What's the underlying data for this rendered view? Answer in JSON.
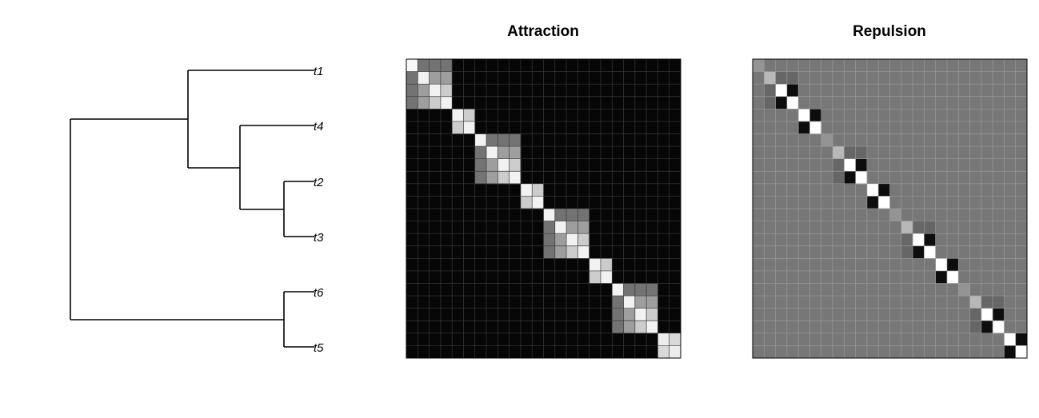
{
  "chart_data": [
    {
      "type": "tree",
      "newick": "((t1,(t4,(t2,t3))),(t6,t5));",
      "tip_labels": [
        "t1",
        "t4",
        "t2",
        "t3",
        "t6",
        "t5"
      ]
    },
    {
      "type": "heatmap",
      "title": "Attraction",
      "size": 24,
      "colors": {
        "background": "#060606",
        "grid": "#3a3a3a",
        "frame": "#000000"
      },
      "cells": [
        [
          0,
          0,
          0.97
        ],
        [
          0,
          1,
          0.45
        ],
        [
          0,
          2,
          0.45
        ],
        [
          0,
          3,
          0.45
        ],
        [
          1,
          0,
          0.45
        ],
        [
          1,
          1,
          0.95
        ],
        [
          1,
          2,
          0.62
        ],
        [
          1,
          3,
          0.62
        ],
        [
          2,
          0,
          0.45
        ],
        [
          2,
          1,
          0.62
        ],
        [
          2,
          2,
          0.95
        ],
        [
          2,
          3,
          0.8
        ],
        [
          3,
          0,
          0.45
        ],
        [
          3,
          1,
          0.62
        ],
        [
          3,
          2,
          0.8
        ],
        [
          3,
          3,
          0.95
        ],
        [
          4,
          4,
          0.95
        ],
        [
          4,
          5,
          0.8
        ],
        [
          5,
          4,
          0.8
        ],
        [
          5,
          5,
          0.95
        ],
        [
          6,
          6,
          0.95
        ],
        [
          6,
          7,
          0.45
        ],
        [
          6,
          8,
          0.45
        ],
        [
          6,
          9,
          0.45
        ],
        [
          7,
          6,
          0.45
        ],
        [
          7,
          7,
          0.95
        ],
        [
          7,
          8,
          0.62
        ],
        [
          7,
          9,
          0.62
        ],
        [
          8,
          6,
          0.45
        ],
        [
          8,
          7,
          0.62
        ],
        [
          8,
          8,
          0.95
        ],
        [
          8,
          9,
          0.8
        ],
        [
          9,
          6,
          0.45
        ],
        [
          9,
          7,
          0.62
        ],
        [
          9,
          8,
          0.8
        ],
        [
          9,
          9,
          0.95
        ],
        [
          10,
          10,
          0.95
        ],
        [
          10,
          11,
          0.8
        ],
        [
          11,
          10,
          0.8
        ],
        [
          11,
          11,
          0.95
        ],
        [
          12,
          12,
          0.95
        ],
        [
          12,
          13,
          0.45
        ],
        [
          12,
          14,
          0.45
        ],
        [
          12,
          15,
          0.45
        ],
        [
          13,
          12,
          0.45
        ],
        [
          13,
          13,
          0.95
        ],
        [
          13,
          14,
          0.62
        ],
        [
          13,
          15,
          0.62
        ],
        [
          14,
          12,
          0.45
        ],
        [
          14,
          13,
          0.62
        ],
        [
          14,
          14,
          0.95
        ],
        [
          14,
          15,
          0.8
        ],
        [
          15,
          12,
          0.45
        ],
        [
          15,
          13,
          0.62
        ],
        [
          15,
          14,
          0.8
        ],
        [
          15,
          15,
          0.95
        ],
        [
          16,
          16,
          0.95
        ],
        [
          16,
          17,
          0.8
        ],
        [
          17,
          16,
          0.8
        ],
        [
          17,
          17,
          0.95
        ],
        [
          18,
          18,
          0.95
        ],
        [
          18,
          19,
          0.45
        ],
        [
          18,
          20,
          0.45
        ],
        [
          18,
          21,
          0.45
        ],
        [
          19,
          18,
          0.45
        ],
        [
          19,
          19,
          0.95
        ],
        [
          19,
          20,
          0.62
        ],
        [
          19,
          21,
          0.62
        ],
        [
          20,
          18,
          0.45
        ],
        [
          20,
          19,
          0.62
        ],
        [
          20,
          20,
          0.95
        ],
        [
          20,
          21,
          0.8
        ],
        [
          21,
          18,
          0.45
        ],
        [
          21,
          19,
          0.62
        ],
        [
          21,
          20,
          0.8
        ],
        [
          21,
          21,
          0.95
        ],
        [
          22,
          22,
          0.93
        ],
        [
          22,
          23,
          0.85
        ],
        [
          23,
          22,
          0.85
        ],
        [
          23,
          23,
          0.93
        ]
      ]
    },
    {
      "type": "heatmap",
      "title": "Repulsion",
      "size": 24,
      "colors": {
        "background": "#777777",
        "grid": "#9a9a9a",
        "frame": "#000000"
      },
      "cells": [
        [
          0,
          0,
          0.58
        ],
        [
          1,
          1,
          0.72
        ],
        [
          1,
          2,
          0.4
        ],
        [
          1,
          3,
          0.4
        ],
        [
          2,
          1,
          0.4
        ],
        [
          2,
          2,
          1.0
        ],
        [
          2,
          3,
          0.05
        ],
        [
          3,
          1,
          0.4
        ],
        [
          3,
          2,
          0.05
        ],
        [
          3,
          3,
          1.0
        ],
        [
          4,
          4,
          1.0
        ],
        [
          4,
          5,
          0.05
        ],
        [
          5,
          4,
          0.05
        ],
        [
          5,
          5,
          1.0
        ],
        [
          6,
          6,
          0.58
        ],
        [
          7,
          7,
          0.72
        ],
        [
          7,
          8,
          0.4
        ],
        [
          7,
          9,
          0.4
        ],
        [
          8,
          7,
          0.4
        ],
        [
          8,
          8,
          1.0
        ],
        [
          8,
          9,
          0.05
        ],
        [
          9,
          7,
          0.4
        ],
        [
          9,
          8,
          0.05
        ],
        [
          9,
          9,
          1.0
        ],
        [
          10,
          10,
          1.0
        ],
        [
          10,
          11,
          0.05
        ],
        [
          11,
          10,
          0.05
        ],
        [
          11,
          11,
          1.0
        ],
        [
          12,
          12,
          0.58
        ],
        [
          13,
          13,
          0.72
        ],
        [
          13,
          14,
          0.4
        ],
        [
          13,
          15,
          0.4
        ],
        [
          14,
          13,
          0.4
        ],
        [
          14,
          14,
          1.0
        ],
        [
          14,
          15,
          0.05
        ],
        [
          15,
          13,
          0.4
        ],
        [
          15,
          14,
          0.05
        ],
        [
          15,
          15,
          1.0
        ],
        [
          16,
          16,
          1.0
        ],
        [
          16,
          17,
          0.05
        ],
        [
          17,
          16,
          0.05
        ],
        [
          17,
          17,
          1.0
        ],
        [
          18,
          18,
          0.58
        ],
        [
          19,
          19,
          0.72
        ],
        [
          19,
          20,
          0.4
        ],
        [
          19,
          21,
          0.4
        ],
        [
          20,
          19,
          0.4
        ],
        [
          20,
          20,
          1.0
        ],
        [
          20,
          21,
          0.05
        ],
        [
          21,
          19,
          0.4
        ],
        [
          21,
          20,
          0.05
        ],
        [
          21,
          21,
          1.0
        ],
        [
          22,
          22,
          1.0
        ],
        [
          22,
          23,
          0.05
        ],
        [
          23,
          22,
          0.05
        ],
        [
          23,
          23,
          1.0
        ]
      ]
    }
  ]
}
